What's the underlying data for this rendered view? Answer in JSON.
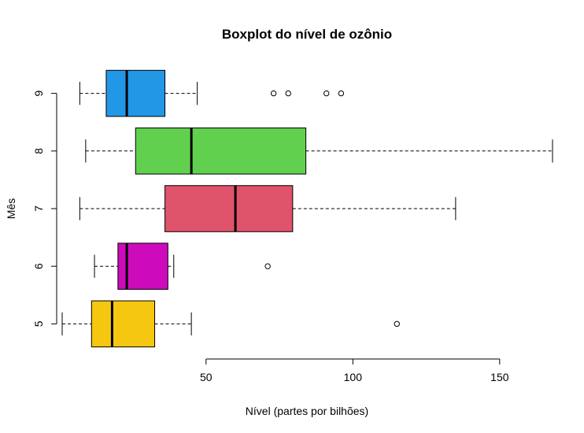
{
  "chart_data": {
    "type": "boxplot",
    "orientation": "horizontal",
    "title": "Boxplot do nível de ozônio",
    "xlabel": "Nível (partes por bilhões)",
    "ylabel": "Mês",
    "xlim": [
      1,
      168
    ],
    "xticks": [
      50,
      100,
      150
    ],
    "xtick_labels": [
      "50",
      "100",
      "150"
    ],
    "categories": [
      "5",
      "6",
      "7",
      "8",
      "9"
    ],
    "series": [
      {
        "category": "5",
        "color": "#F5C710",
        "whisker_low": 1,
        "q1": 11,
        "median": 18,
        "q3": 32.5,
        "whisker_high": 45,
        "outliers": [
          115
        ]
      },
      {
        "category": "6",
        "color": "#CD0BBC",
        "whisker_low": 12,
        "q1": 20,
        "median": 23,
        "q3": 37,
        "whisker_high": 39,
        "outliers": [
          71
        ]
      },
      {
        "category": "7",
        "color": "#DF536B",
        "whisker_low": 7,
        "q1": 36,
        "median": 60,
        "q3": 79.5,
        "whisker_high": 135,
        "outliers": []
      },
      {
        "category": "8",
        "color": "#61D04F",
        "whisker_low": 9,
        "q1": 26,
        "median": 45,
        "q3": 84,
        "whisker_high": 168,
        "outliers": []
      },
      {
        "category": "9",
        "color": "#2297E6",
        "whisker_low": 7,
        "q1": 16,
        "median": 23,
        "q3": 36,
        "whisker_high": 47,
        "outliers": [
          73,
          78,
          91,
          96
        ]
      }
    ],
    "grid": false,
    "legend": "none"
  }
}
